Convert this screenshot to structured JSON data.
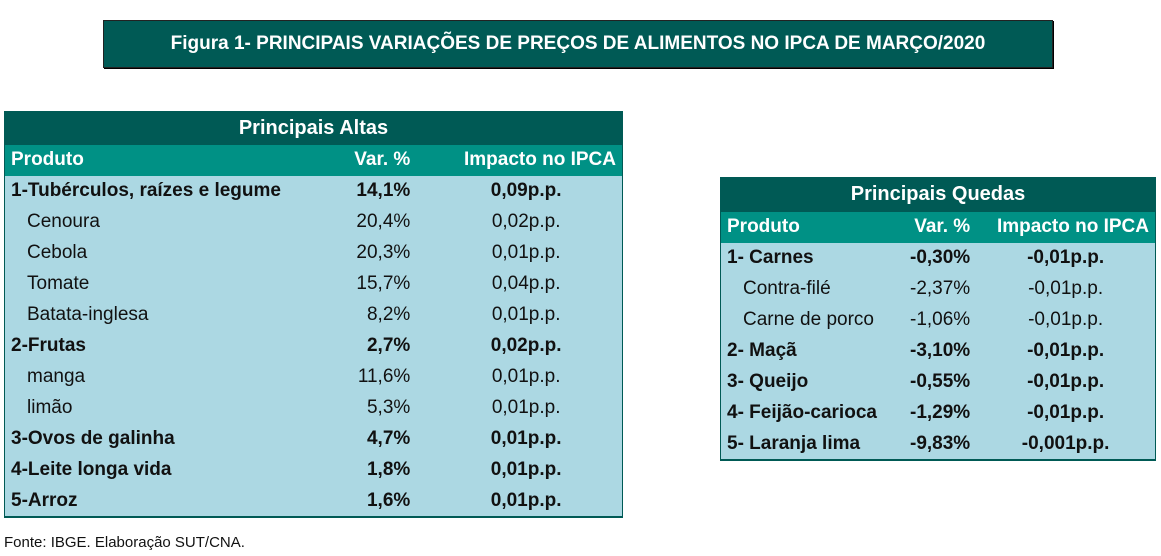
{
  "title": "Figura 1- PRINCIPAIS VARIAÇÕES DE PREÇOS DE ALIMENTOS NO IPCA DE MARÇO/2020",
  "altas": {
    "title": "Principais Altas",
    "headers": [
      "Produto",
      "Var. %",
      "Impacto no IPCA"
    ],
    "rows": [
      {
        "p": "1-Tubérculos, raízes e legume",
        "v": "14,1%",
        "i": "0,09p.p.",
        "bold": true
      },
      {
        "p": "Cenoura",
        "v": "20,4%",
        "i": "0,02p.p."
      },
      {
        "p": "Cebola",
        "v": "20,3%",
        "i": "0,01p.p."
      },
      {
        "p": "Tomate",
        "v": "15,7%",
        "i": "0,04p.p."
      },
      {
        "p": "Batata-inglesa",
        "v": "8,2%",
        "i": "0,01p.p."
      },
      {
        "p": "2-Frutas",
        "v": "2,7%",
        "i": "0,02p.p.",
        "bold": true
      },
      {
        "p": "manga",
        "v": "11,6%",
        "i": "0,01p.p."
      },
      {
        "p": "limão",
        "v": "5,3%",
        "i": "0,01p.p."
      },
      {
        "p": "3-Ovos de galinha",
        "v": "4,7%",
        "i": "0,01p.p.",
        "bold": true
      },
      {
        "p": "4-Leite longa vida",
        "v": "1,8%",
        "i": "0,01p.p.",
        "bold": true
      },
      {
        "p": "5-Arroz",
        "v": "1,6%",
        "i": "0,01p.p.",
        "bold": true
      }
    ]
  },
  "quedas": {
    "title": "Principais Quedas",
    "headers": [
      "Produto",
      "Var. %",
      "Impacto no IPCA"
    ],
    "rows": [
      {
        "p": "1- Carnes",
        "v": "-0,30%",
        "i": "-0,01p.p.",
        "bold": true
      },
      {
        "p": "Contra-filé",
        "v": "-2,37%",
        "i": "-0,01p.p."
      },
      {
        "p": "Carne de porco",
        "v": "-1,06%",
        "i": "-0,01p.p."
      },
      {
        "p": "2- Maçã",
        "v": "-3,10%",
        "i": "-0,01p.p.",
        "bold": true
      },
      {
        "p": "3- Queijo",
        "v": "-0,55%",
        "i": "-0,01p.p.",
        "bold": true
      },
      {
        "p": "4- Feijão-carioca",
        "v": "-1,29%",
        "i": "-0,01p.p.",
        "bold": true
      },
      {
        "p": "5- Laranja lima",
        "v": "-9,83%",
        "i": "-0,001p.p.",
        "bold": true
      }
    ]
  },
  "source": "Fonte: IBGE. Elaboração SUT/CNA.",
  "colors": {
    "dark": "#005a55",
    "header": "#009185",
    "body": "#acd8e3"
  }
}
